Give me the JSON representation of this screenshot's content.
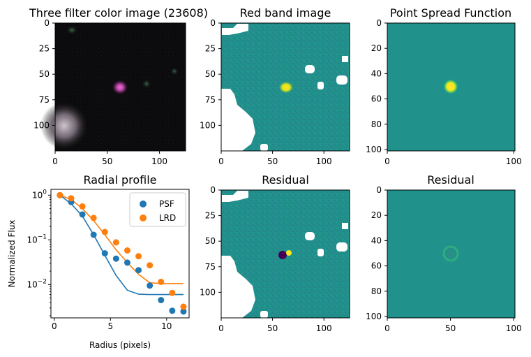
{
  "panels": [
    {
      "id": "color",
      "title": "Three filter color image (23608)"
    },
    {
      "id": "red",
      "title": "Red band image"
    },
    {
      "id": "psf",
      "title": "Point Spread Function"
    },
    {
      "id": "profile",
      "title": "Radial profile"
    },
    {
      "id": "resid1",
      "title": "Residual"
    },
    {
      "id": "resid2",
      "title": "Residual"
    }
  ],
  "colors": {
    "psf": "#1f77b4",
    "lrd": "#ff7f0e",
    "viridis_bg": "#21918c",
    "viridis_yellow": "#fde725",
    "masked": "#ffffff",
    "color_bg": "#0a0a0a"
  },
  "chart_data": [
    {
      "type": "heatmap",
      "panel": "color",
      "title": "Three filter color image (23608)",
      "xticks": [
        "0",
        "50",
        "100"
      ],
      "yticks": [
        "0",
        "25",
        "50",
        "75",
        "100"
      ],
      "xlim": [
        0,
        125
      ],
      "ylim": [
        125,
        0
      ]
    },
    {
      "type": "heatmap",
      "panel": "red",
      "title": "Red band image",
      "xticks": [
        "0",
        "50",
        "100"
      ],
      "yticks": [
        "0",
        "25",
        "50",
        "75",
        "100"
      ],
      "xlim": [
        0,
        125
      ],
      "ylim": [
        125,
        0
      ]
    },
    {
      "type": "heatmap",
      "panel": "psf",
      "title": "Point Spread Function",
      "xticks": [
        "0",
        "100"
      ],
      "yticks": [
        "0",
        "20",
        "40",
        "60",
        "80",
        "100"
      ],
      "xlim": [
        0,
        101
      ],
      "ylim": [
        101,
        0
      ]
    },
    {
      "type": "scatter",
      "panel": "profile",
      "title": "Radial profile",
      "xlabel": "Radius (pixels)",
      "ylabel": "Normalized Flux",
      "xticks": [
        "0",
        "5",
        "10"
      ],
      "yticks": [
        "10^0",
        "10^-1",
        "10^-2"
      ],
      "xlim": [
        -0.3,
        12.0
      ],
      "ylim": [
        0.0018,
        1.35
      ],
      "yscale": "log",
      "legend": "top-right",
      "series": [
        {
          "name": "PSF",
          "color": "#1f77b4",
          "x": [
            0.5,
            1.5,
            2.5,
            3.5,
            4.5,
            5.5,
            6.5,
            7.5,
            8.5,
            9.5,
            10.5,
            11.5
          ],
          "y": [
            1.0,
            0.7,
            0.37,
            0.13,
            0.05,
            0.038,
            0.031,
            0.021,
            0.0095,
            0.0045,
            0.0026,
            0.0025
          ]
        },
        {
          "name": "LRD",
          "color": "#ff7f0e",
          "x": [
            0.5,
            1.5,
            2.5,
            3.5,
            4.5,
            5.5,
            6.5,
            7.5,
            8.5,
            9.5,
            10.5,
            11.5
          ],
          "y": [
            1.0,
            0.85,
            0.56,
            0.31,
            0.15,
            0.088,
            0.058,
            0.043,
            0.027,
            0.0115,
            0.0065,
            0.0032
          ]
        }
      ],
      "lines": [
        {
          "color": "#1f77b4",
          "x": [
            0.5,
            1.5,
            2.5,
            3.5,
            4.5,
            5.5,
            6.5,
            7.5,
            8.5,
            9.5,
            10.5,
            11.5
          ],
          "y": [
            1.0,
            0.64,
            0.34,
            0.13,
            0.045,
            0.016,
            0.0075,
            0.0061,
            0.006,
            0.006,
            0.006,
            0.006
          ]
        },
        {
          "color": "#ff7f0e",
          "x": [
            0.5,
            1.5,
            2.5,
            3.5,
            4.5,
            5.5,
            6.5,
            7.5,
            8.5,
            9.5,
            10.5,
            11.5
          ],
          "y": [
            1.0,
            0.8,
            0.5,
            0.27,
            0.13,
            0.06,
            0.031,
            0.017,
            0.011,
            0.0105,
            0.0105,
            0.0105
          ]
        }
      ]
    },
    {
      "type": "heatmap",
      "panel": "resid1",
      "title": "Residual",
      "xticks": [
        "0",
        "50",
        "100"
      ],
      "yticks": [
        "0",
        "25",
        "50",
        "75",
        "100"
      ],
      "xlim": [
        0,
        125
      ],
      "ylim": [
        125,
        0
      ]
    },
    {
      "type": "heatmap",
      "panel": "resid2",
      "title": "Residual",
      "xticks": [
        "0",
        "50",
        "100"
      ],
      "yticks": [
        "0",
        "20",
        "40",
        "60",
        "80",
        "100"
      ],
      "xlim": [
        0,
        101
      ],
      "ylim": [
        101,
        0
      ]
    }
  ]
}
